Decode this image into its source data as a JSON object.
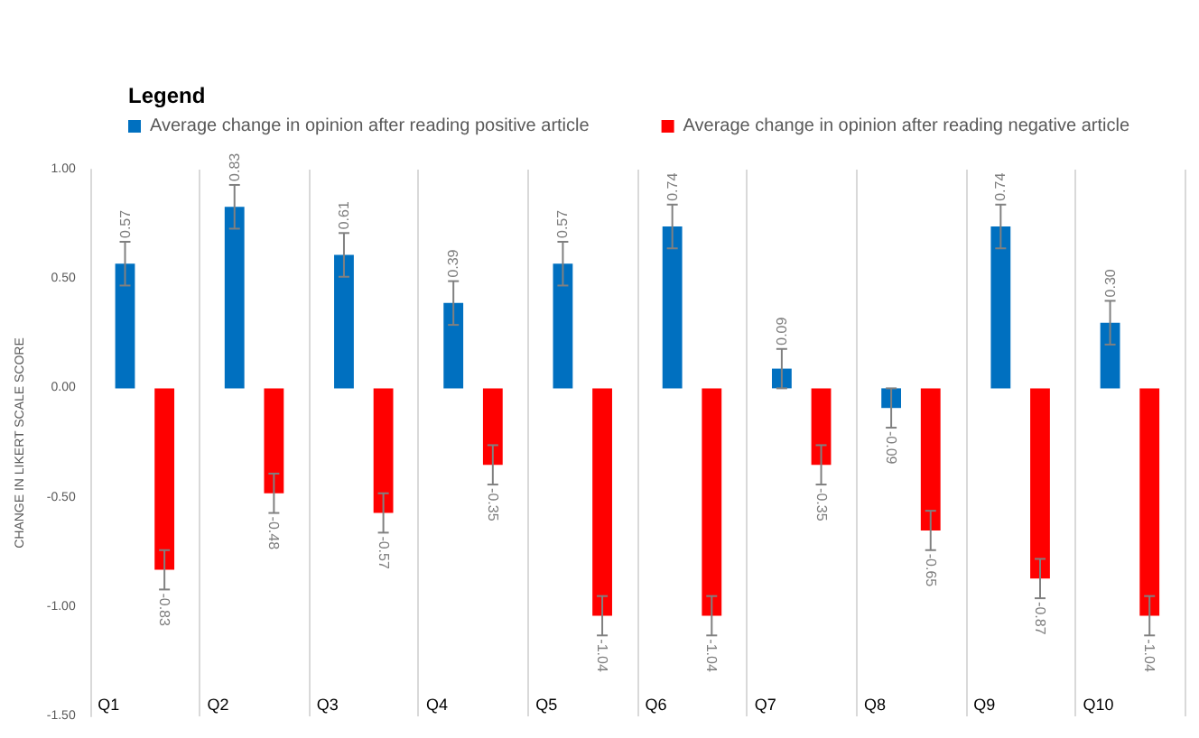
{
  "chart_data": {
    "type": "bar",
    "legend_title": "Legend",
    "ylabel": "CHANGE IN LIKERT SCALE SCORE",
    "categories": [
      "Q1",
      "Q2",
      "Q3",
      "Q4",
      "Q5",
      "Q6",
      "Q7",
      "Q8",
      "Q9",
      "Q10"
    ],
    "series": [
      {
        "name": "Average change in opinion after reading positive article",
        "color": "#0070c0",
        "values": [
          0.57,
          0.83,
          0.61,
          0.39,
          0.57,
          0.74,
          0.09,
          -0.09,
          0.74,
          0.3
        ],
        "errors": [
          0.1,
          0.1,
          0.1,
          0.1,
          0.1,
          0.1,
          0.09,
          0.09,
          0.1,
          0.1
        ],
        "value_labels": [
          "0.57",
          "0.83",
          "0.61",
          "0.39",
          "0.57",
          "0.74",
          "0.09",
          "-0.09",
          "0.74",
          "0.30"
        ]
      },
      {
        "name": "Average change in opinion after reading negative article",
        "color": "#ff0000",
        "values": [
          -0.83,
          -0.48,
          -0.57,
          -0.35,
          -1.04,
          -1.04,
          -0.35,
          -0.65,
          -0.87,
          -1.04
        ],
        "errors": [
          0.09,
          0.09,
          0.09,
          0.09,
          0.09,
          0.09,
          0.09,
          0.09,
          0.09,
          0.09
        ],
        "value_labels": [
          "-0.83",
          "-0.48",
          "-0.57",
          "-0.35",
          "-1.04",
          "-1.04",
          "-0.35",
          "-0.65",
          "-0.87",
          "-1.04"
        ]
      }
    ],
    "ylim": [
      -1.5,
      1.0
    ],
    "yticks": [
      {
        "value": -1.5,
        "label": "-1.50"
      },
      {
        "value": -1.0,
        "label": "-1.00"
      },
      {
        "value": -0.5,
        "label": "-0.50"
      },
      {
        "value": 0,
        "label": "0.00"
      },
      {
        "value": 0.5,
        "label": "0.50"
      },
      {
        "value": 1.0,
        "label": "1.00"
      }
    ],
    "grid": "x",
    "legend": "top left"
  }
}
